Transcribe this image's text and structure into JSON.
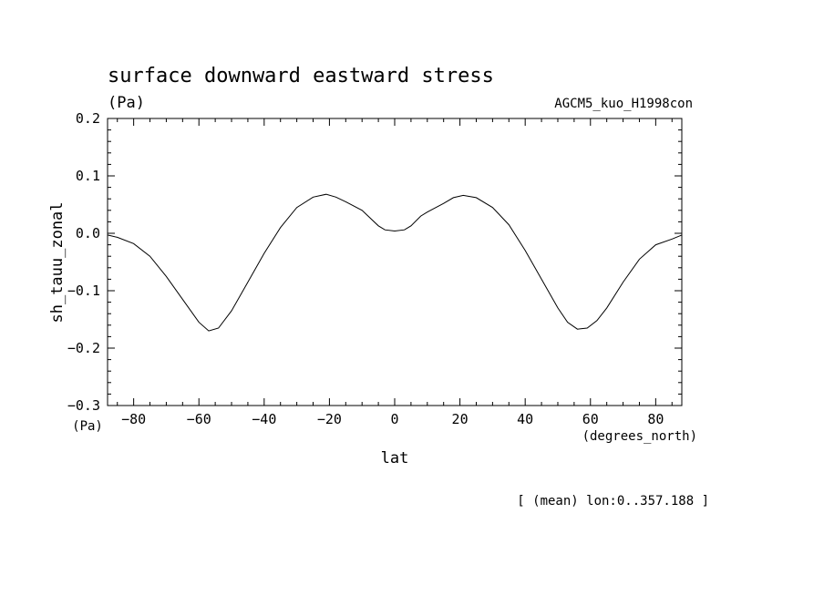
{
  "chart_data": {
    "type": "line",
    "title": "surface downward eastward stress",
    "units": "(Pa)",
    "dataset": "AGCM5_kuo_H1998con",
    "ylabel": "sh_tauu_zonal",
    "yunits": "(Pa)",
    "xlabel": "lat",
    "xunits": "(degrees_north)",
    "footnote": "[ (mean) lon:0..357.188 ]",
    "xlim": [
      -88,
      88
    ],
    "ylim": [
      -0.3,
      0.2
    ],
    "xticks": [
      -80,
      -60,
      -40,
      -20,
      0,
      20,
      40,
      60,
      80
    ],
    "xtick_labels": [
      "−80",
      "−60",
      "−40",
      "−20",
      "0",
      "20",
      "40",
      "60",
      "80"
    ],
    "yticks": [
      0.2,
      0.1,
      0.0,
      -0.1,
      -0.2,
      -0.3
    ],
    "ytick_labels": [
      "0.2",
      "0.1",
      "0.0",
      "−0.1",
      "−0.2",
      "−0.3"
    ],
    "grid": false,
    "series": [
      {
        "x": [
          -88,
          -85,
          -80,
          -75,
          -70,
          -65,
          -60,
          -57,
          -54,
          -50,
          -45,
          -40,
          -35,
          -30,
          -25,
          -21,
          -18,
          -15,
          -10,
          -5,
          -3,
          0,
          3,
          5,
          8,
          10,
          15,
          18,
          21,
          25,
          30,
          35,
          40,
          45,
          50,
          53,
          56,
          59,
          62,
          65,
          70,
          75,
          80,
          85,
          88
        ],
        "y": [
          -0.003,
          -0.007,
          -0.018,
          -0.04,
          -0.075,
          -0.115,
          -0.155,
          -0.17,
          -0.165,
          -0.135,
          -0.085,
          -0.035,
          0.01,
          0.045,
          0.063,
          0.068,
          0.063,
          0.055,
          0.04,
          0.013,
          0.006,
          0.004,
          0.006,
          0.013,
          0.03,
          0.037,
          0.052,
          0.062,
          0.066,
          0.062,
          0.045,
          0.015,
          -0.03,
          -0.08,
          -0.13,
          -0.155,
          -0.167,
          -0.165,
          -0.152,
          -0.13,
          -0.085,
          -0.045,
          -0.02,
          -0.01,
          -0.003
        ]
      }
    ]
  }
}
